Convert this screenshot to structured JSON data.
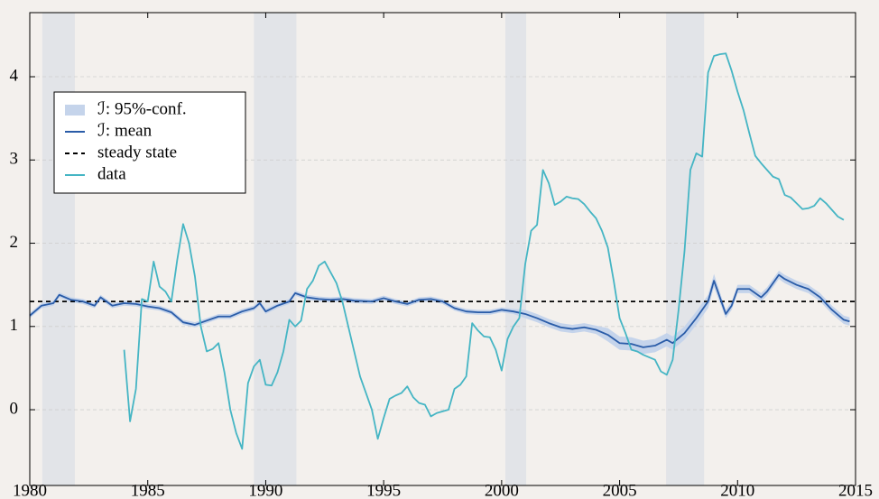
{
  "chart_data": {
    "type": "line",
    "xlim": [
      1980,
      2015
    ],
    "xticks": [
      1980,
      1985,
      1990,
      1995,
      2000,
      2005,
      2010,
      2015
    ],
    "ylim": [
      -0.91,
      4.77
    ],
    "yticks": [
      0,
      1,
      2,
      3,
      4
    ],
    "grid": true,
    "legend": "upper left",
    "shaded_periods": [
      [
        1980.53,
        1981.91
      ],
      [
        1989.5,
        1991.3
      ],
      [
        2000.16,
        2001.04
      ],
      [
        2006.97,
        2008.58
      ]
    ],
    "shade_color": "#e2e4e8",
    "series": [
      {
        "name": "ℐ: 95%-conf.",
        "style": "band",
        "color": "#c5d4eb",
        "x": [
          1980,
          1980.5,
          1981,
          1981.25,
          1981.75,
          1982.25,
          1982.75,
          1983,
          1983.5,
          1984,
          1984.5,
          1985,
          1985.5,
          1986,
          1986.5,
          1987,
          1987.5,
          1988,
          1988.5,
          1989,
          1989.5,
          1989.75,
          1990,
          1990.5,
          1991,
          1991.25,
          1991.75,
          1992.25,
          1992.75,
          1993.25,
          1993.75,
          1994.5,
          1995,
          1995.5,
          1996,
          1996.5,
          1997,
          1997.5,
          1998,
          1998.5,
          1999,
          1999.5,
          2000,
          2000.5,
          2001,
          2001.5,
          2002,
          2002.5,
          2003,
          2003.5,
          2004,
          2004.5,
          2005,
          2005.5,
          2006,
          2006.5,
          2007,
          2007.25,
          2007.75,
          2008.25,
          2008.75,
          2009,
          2009.5,
          2009.75,
          2010,
          2010.5,
          2011,
          2011.25,
          2011.75,
          2012,
          2012.5,
          2013,
          2013.5,
          2014,
          2014.5,
          2014.75
        ],
        "lower": [
          1.1,
          1.22,
          1.25,
          1.35,
          1.29,
          1.27,
          1.22,
          1.32,
          1.22,
          1.25,
          1.24,
          1.21,
          1.19,
          1.14,
          1.02,
          0.99,
          1.04,
          1.09,
          1.09,
          1.15,
          1.19,
          1.25,
          1.15,
          1.22,
          1.27,
          1.37,
          1.32,
          1.3,
          1.29,
          1.3,
          1.28,
          1.27,
          1.31,
          1.27,
          1.24,
          1.29,
          1.3,
          1.27,
          1.19,
          1.15,
          1.14,
          1.14,
          1.17,
          1.15,
          1.1,
          1.05,
          0.99,
          0.94,
          0.92,
          0.94,
          0.91,
          0.82,
          0.72,
          0.71,
          0.67,
          0.69,
          0.76,
          0.72,
          0.84,
          1.02,
          1.22,
          1.47,
          1.1,
          1.2,
          1.4,
          1.4,
          1.3,
          1.37,
          1.57,
          1.52,
          1.45,
          1.4,
          1.3,
          1.15,
          1.03,
          1.01
        ],
        "upper": [
          1.16,
          1.28,
          1.31,
          1.41,
          1.35,
          1.33,
          1.28,
          1.38,
          1.28,
          1.31,
          1.3,
          1.27,
          1.25,
          1.2,
          1.08,
          1.05,
          1.1,
          1.15,
          1.15,
          1.21,
          1.25,
          1.31,
          1.21,
          1.28,
          1.33,
          1.43,
          1.38,
          1.36,
          1.35,
          1.36,
          1.34,
          1.33,
          1.37,
          1.33,
          1.3,
          1.35,
          1.36,
          1.33,
          1.25,
          1.21,
          1.2,
          1.2,
          1.23,
          1.21,
          1.2,
          1.15,
          1.09,
          1.04,
          1.02,
          1.04,
          1.01,
          0.98,
          0.88,
          0.87,
          0.83,
          0.85,
          0.92,
          0.88,
          1.0,
          1.18,
          1.38,
          1.63,
          1.2,
          1.3,
          1.5,
          1.5,
          1.4,
          1.47,
          1.67,
          1.62,
          1.55,
          1.5,
          1.4,
          1.25,
          1.13,
          1.11
        ]
      },
      {
        "name": "ℐ: mean",
        "style": "solid",
        "color": "#2a5ca8",
        "x": [
          1980,
          1980.5,
          1981,
          1981.25,
          1981.75,
          1982.25,
          1982.75,
          1983,
          1983.5,
          1984,
          1984.5,
          1985,
          1985.5,
          1986,
          1986.5,
          1987,
          1987.5,
          1988,
          1988.5,
          1989,
          1989.5,
          1989.75,
          1990,
          1990.5,
          1991,
          1991.25,
          1991.75,
          1992.25,
          1992.75,
          1993.25,
          1993.75,
          1994.5,
          1995,
          1995.5,
          1996,
          1996.5,
          1997,
          1997.5,
          1998,
          1998.5,
          1999,
          1999.5,
          2000,
          2000.5,
          2001,
          2001.5,
          2002,
          2002.5,
          2003,
          2003.5,
          2004,
          2004.5,
          2005,
          2005.5,
          2006,
          2006.5,
          2007,
          2007.25,
          2007.75,
          2008.25,
          2008.75,
          2009,
          2009.5,
          2009.75,
          2010,
          2010.5,
          2011,
          2011.25,
          2011.75,
          2012,
          2012.5,
          2013,
          2013.5,
          2014,
          2014.5,
          2014.75
        ],
        "values": [
          1.13,
          1.25,
          1.28,
          1.38,
          1.32,
          1.3,
          1.25,
          1.35,
          1.25,
          1.28,
          1.27,
          1.24,
          1.22,
          1.17,
          1.05,
          1.02,
          1.07,
          1.12,
          1.12,
          1.18,
          1.22,
          1.28,
          1.18,
          1.25,
          1.3,
          1.4,
          1.35,
          1.33,
          1.32,
          1.33,
          1.31,
          1.3,
          1.34,
          1.3,
          1.27,
          1.32,
          1.33,
          1.3,
          1.22,
          1.18,
          1.17,
          1.17,
          1.2,
          1.18,
          1.15,
          1.1,
          1.04,
          0.99,
          0.97,
          0.99,
          0.96,
          0.9,
          0.8,
          0.79,
          0.75,
          0.77,
          0.84,
          0.8,
          0.92,
          1.1,
          1.3,
          1.55,
          1.15,
          1.25,
          1.45,
          1.45,
          1.35,
          1.42,
          1.62,
          1.57,
          1.5,
          1.45,
          1.35,
          1.2,
          1.08,
          1.06
        ]
      },
      {
        "name": "steady state",
        "style": "hline",
        "color": "#000000",
        "value": 1.3
      },
      {
        "name": "data",
        "style": "solid",
        "color": "#45b5c4",
        "x": [
          1984,
          1984.25,
          1984.5,
          1984.75,
          1985,
          1985.25,
          1985.5,
          1985.75,
          1986,
          1986.25,
          1986.5,
          1986.75,
          1987,
          1987.25,
          1987.5,
          1987.75,
          1988,
          1988.25,
          1988.5,
          1988.75,
          1989,
          1989.25,
          1989.5,
          1989.75,
          1990,
          1990.25,
          1990.5,
          1990.75,
          1991,
          1991.25,
          1991.5,
          1991.75,
          1992,
          1992.25,
          1992.5,
          1992.75,
          1993,
          1993.25,
          1993.5,
          1993.75,
          1994,
          1994.25,
          1994.5,
          1994.75,
          1995,
          1995.25,
          1995.5,
          1995.75,
          1996,
          1996.25,
          1996.5,
          1996.75,
          1997,
          1997.25,
          1997.5,
          1997.75,
          1998,
          1998.25,
          1998.5,
          1998.75,
          1999,
          1999.25,
          1999.5,
          1999.75,
          2000,
          2000.25,
          2000.5,
          2000.75,
          2001,
          2001.25,
          2001.5,
          2001.75,
          2002,
          2002.25,
          2002.5,
          2002.75,
          2003,
          2003.25,
          2003.5,
          2003.75,
          2004,
          2004.25,
          2004.5,
          2004.75,
          2005,
          2005.25,
          2005.5,
          2005.75,
          2006,
          2006.25,
          2006.5,
          2006.75,
          2007,
          2007.25,
          2007.5,
          2007.75,
          2008,
          2008.25,
          2008.5,
          2008.75,
          2009,
          2009.25,
          2009.5,
          2009.75,
          2010,
          2010.25,
          2010.5,
          2010.75,
          2011,
          2011.25,
          2011.5,
          2011.75,
          2012,
          2012.25,
          2012.5,
          2012.75,
          2013,
          2013.25,
          2013.5,
          2013.75,
          2014,
          2014.25,
          2014.5
        ],
        "values": [
          0.72,
          -0.14,
          0.25,
          1.33,
          1.3,
          1.78,
          1.48,
          1.42,
          1.3,
          1.8,
          2.23,
          2.0,
          1.6,
          1.0,
          0.7,
          0.73,
          0.8,
          0.45,
          0.0,
          -0.28,
          -0.47,
          0.32,
          0.52,
          0.6,
          0.3,
          0.29,
          0.45,
          0.7,
          1.08,
          1.0,
          1.07,
          1.45,
          1.55,
          1.73,
          1.78,
          1.65,
          1.52,
          1.3,
          1.0,
          0.7,
          0.4,
          0.2,
          0.0,
          -0.35,
          -0.1,
          0.13,
          0.17,
          0.2,
          0.28,
          0.15,
          0.08,
          0.06,
          -0.08,
          -0.04,
          -0.02,
          0.0,
          0.25,
          0.3,
          0.4,
          1.04,
          0.95,
          0.88,
          0.87,
          0.72,
          0.47,
          0.85,
          1.0,
          1.1,
          1.75,
          2.15,
          2.22,
          2.88,
          2.72,
          2.46,
          2.5,
          2.56,
          2.54,
          2.53,
          2.47,
          2.38,
          2.3,
          2.15,
          1.95,
          1.55,
          1.1,
          0.92,
          0.72,
          0.7,
          0.66,
          0.63,
          0.6,
          0.46,
          0.42,
          0.6,
          1.2,
          1.9,
          2.88,
          3.08,
          3.04,
          4.05,
          4.25,
          4.27,
          4.28,
          4.07,
          3.82,
          3.6,
          3.32,
          3.05,
          2.96,
          2.88,
          2.8,
          2.77,
          2.58,
          2.55,
          2.48,
          2.41,
          2.42,
          2.45,
          2.54,
          2.48,
          2.4,
          2.32,
          2.28
        ]
      }
    ]
  }
}
